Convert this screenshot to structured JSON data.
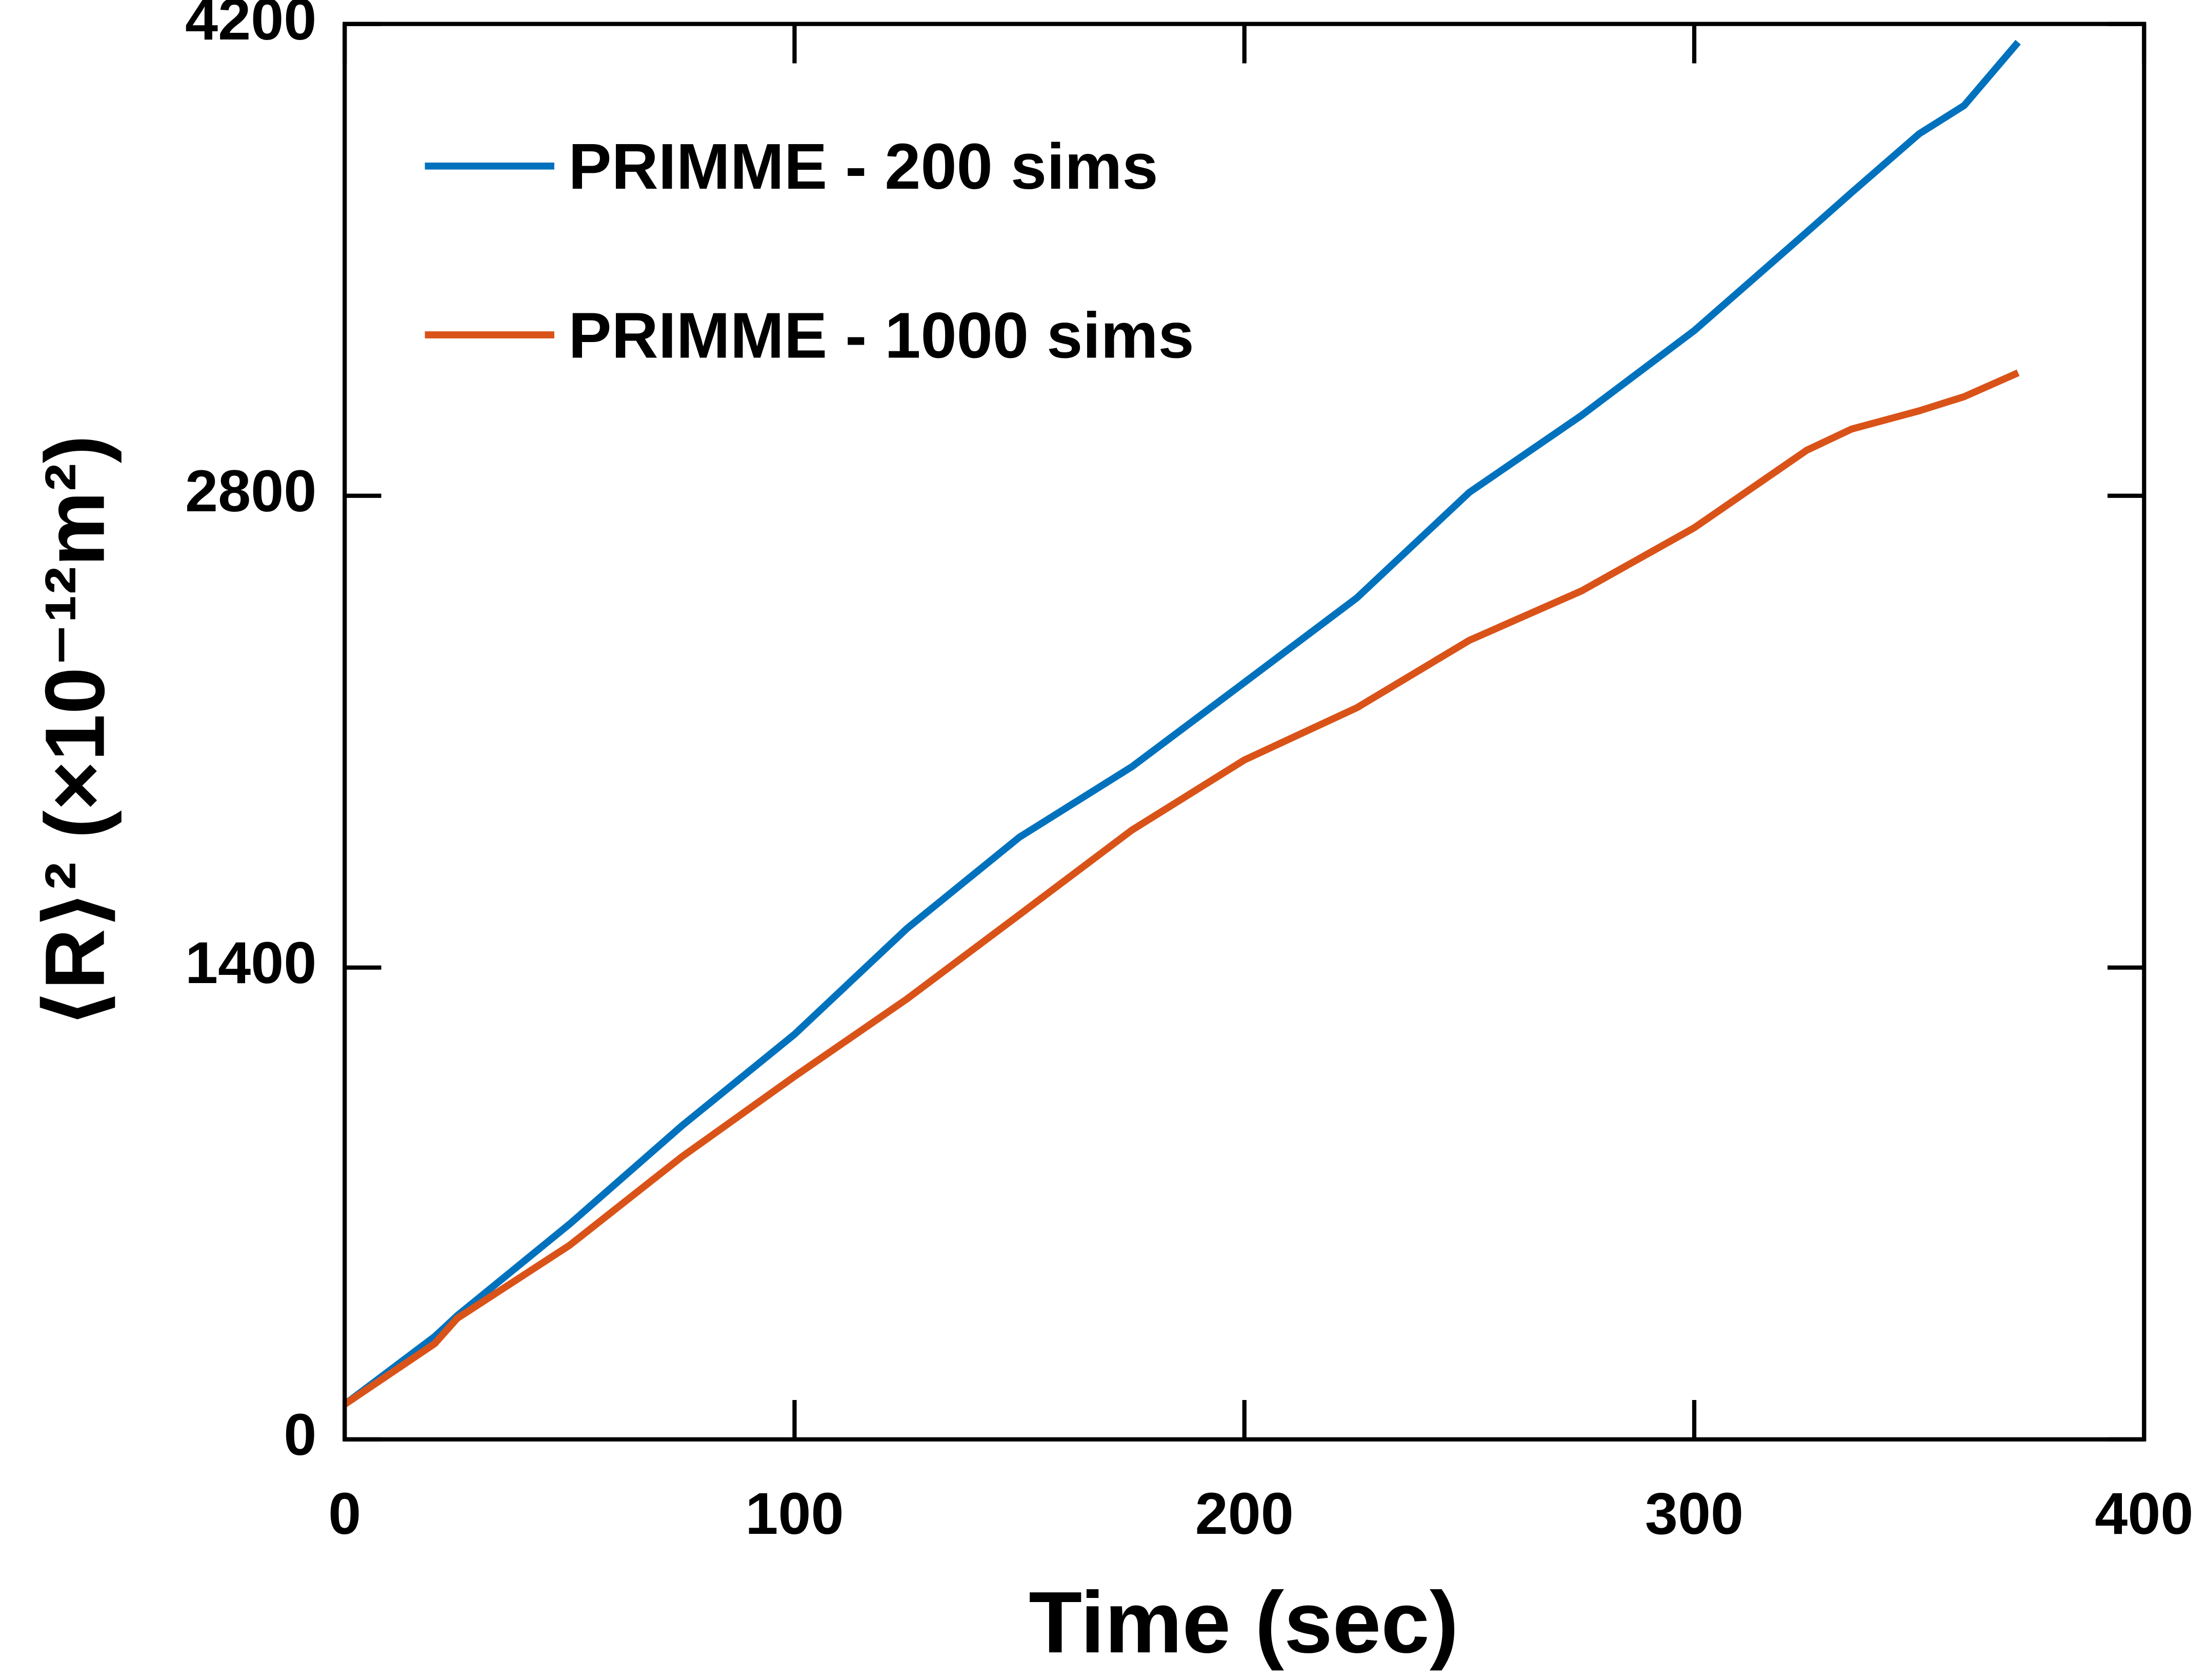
{
  "chart_data": {
    "type": "line",
    "x_label": "Time (sec)",
    "y_label": "⟨R⟩² (×10⁻¹²m²)",
    "x": [
      0,
      20,
      25,
      50,
      75,
      100,
      125,
      150,
      175,
      200,
      225,
      250,
      275,
      300,
      325,
      335,
      350,
      360,
      372
    ],
    "series": [
      {
        "name": "PRIMME - 200 sims",
        "color": "#0072bd",
        "values": [
          104,
          305,
          367,
          639,
          931,
          1202,
          1516,
          1787,
          1996,
          2246,
          2497,
          2810,
          3039,
          3290,
          3582,
          3700,
          3874,
          3958,
          4146
        ]
      },
      {
        "name": "PRIMME - 1000 sims",
        "color": "#d95319",
        "values": [
          104,
          284,
          359,
          576,
          839,
          1077,
          1307,
          1557,
          1808,
          2016,
          2171,
          2371,
          2518,
          2705,
          2935,
          2998,
          3052,
          3094,
          3165
        ]
      }
    ],
    "xlim": [
      0,
      400
    ],
    "xticks": [
      0,
      100,
      200,
      300,
      400
    ],
    "ylim": [
      0,
      4200
    ],
    "yticks": [
      0,
      1400,
      2800,
      4200
    ],
    "grid": false,
    "legend_position": "upper left"
  }
}
